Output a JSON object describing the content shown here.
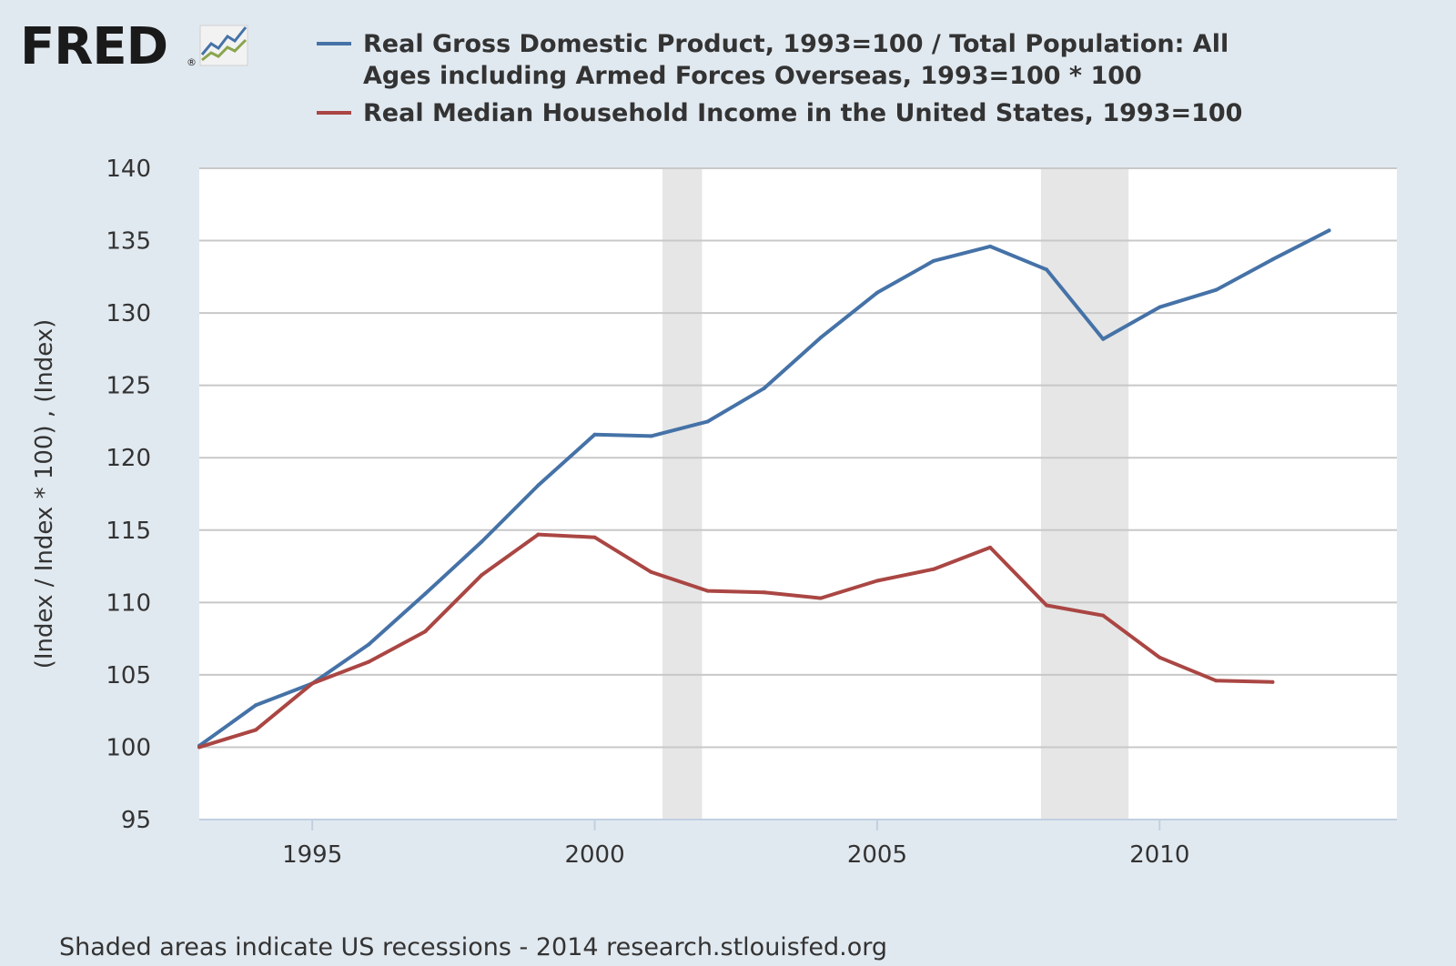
{
  "logo": {
    "text": "FRED",
    "registered": "®"
  },
  "colors": {
    "background": "#e1e9f0",
    "plot_background": "#ffffff",
    "gridline": "#c8c8c8",
    "recession": "#e6e6e6",
    "series_gdp": "#4572a7",
    "series_income": "#aa4643"
  },
  "legend": [
    {
      "color": "#4572a7",
      "lines": [
        "Real Gross Domestic Product, 1993=100 / Total Population: All",
        "Ages including Armed Forces Overseas, 1993=100 * 100"
      ]
    },
    {
      "color": "#aa4643",
      "lines": [
        "Real Median Household Income in the United States, 1993=100"
      ]
    }
  ],
  "footer": "Shaded areas indicate US recessions - 2014 research.stlouisfed.org",
  "chart_data": {
    "type": "line",
    "ylabel": "(Index / Index * 100) , (Index)",
    "xlabel": "",
    "ylim": [
      95,
      140
    ],
    "xlim": [
      1993,
      2014.2
    ],
    "yticks": [
      "95",
      "100",
      "105",
      "110",
      "115",
      "120",
      "125",
      "130",
      "135",
      "140"
    ],
    "xticks": [
      "1995",
      "2000",
      "2005",
      "2010"
    ],
    "grid": true,
    "legend_position": "top",
    "recessions": [
      {
        "start": 2001.2,
        "end": 2001.9
      },
      {
        "start": 2007.9,
        "end": 2009.45
      }
    ],
    "series": [
      {
        "name": "Real Gross Domestic Product, 1993=100 / Total Population: All Ages including Armed Forces Overseas, 1993=100 * 100",
        "color": "#4572a7",
        "x": [
          1993,
          1994,
          1995,
          1996,
          1997,
          1998,
          1999,
          2000,
          2001,
          2002,
          2003,
          2004,
          2005,
          2006,
          2007,
          2008,
          2009,
          2010,
          2011,
          2012,
          2013
        ],
        "values": [
          100.1,
          102.9,
          104.4,
          107.1,
          110.6,
          114.2,
          118.1,
          121.6,
          121.5,
          122.5,
          124.8,
          128.3,
          131.4,
          133.6,
          134.6,
          133.0,
          128.2,
          130.4,
          131.6,
          133.7,
          135.7
        ]
      },
      {
        "name": "Real Median Household Income in the United States, 1993=100",
        "color": "#aa4643",
        "x": [
          1993,
          1994,
          1995,
          1996,
          1997,
          1998,
          1999,
          2000,
          2001,
          2002,
          2003,
          2004,
          2005,
          2006,
          2007,
          2008,
          2009,
          2010,
          2011,
          2012
        ],
        "values": [
          100.0,
          101.2,
          104.4,
          105.9,
          108.0,
          111.9,
          114.7,
          114.5,
          112.1,
          110.8,
          110.7,
          110.3,
          111.5,
          112.3,
          113.8,
          109.8,
          109.1,
          106.2,
          104.6,
          104.5
        ]
      }
    ]
  }
}
